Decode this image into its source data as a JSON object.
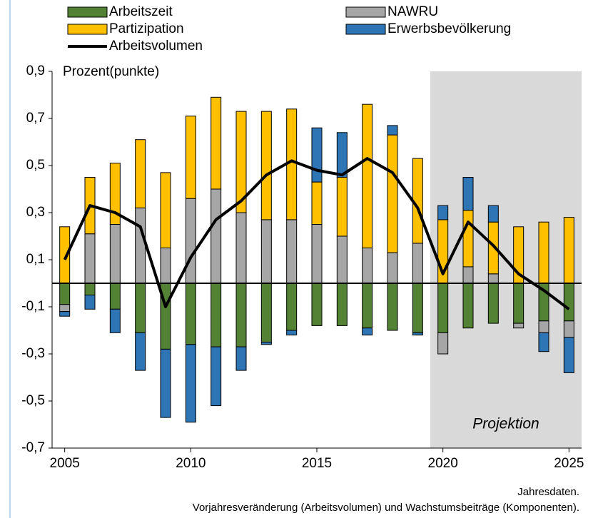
{
  "chart_data": {
    "type": "bar",
    "y_label": "Prozent(punkte)",
    "annotation": "Projektion",
    "projection_region": [
      2019.5,
      2025.5
    ],
    "notes": [
      "Jahresdaten.",
      "Vorjahresveränderung (Arbeitsvolumen) und Wachstumsbeiträge (Komponenten)."
    ],
    "x": [
      2005,
      2006,
      2007,
      2008,
      2009,
      2010,
      2011,
      2012,
      2013,
      2014,
      2015,
      2016,
      2017,
      2018,
      2019,
      2020,
      2021,
      2022,
      2023,
      2024,
      2025
    ],
    "xlim": [
      2004.5,
      2025.5
    ],
    "xticks": [
      2005,
      2010,
      2015,
      2020,
      2025
    ],
    "ylim": [
      -0.7,
      0.9
    ],
    "yticks": [
      {
        "value": -0.7,
        "label": "-0,7"
      },
      {
        "value": -0.5,
        "label": "-0,5"
      },
      {
        "value": -0.3,
        "label": "-0,3"
      },
      {
        "value": -0.1,
        "label": "-0,1"
      },
      {
        "value": 0.1,
        "label": "0,1"
      },
      {
        "value": 0.3,
        "label": "0,3"
      },
      {
        "value": 0.5,
        "label": "0,5"
      },
      {
        "value": 0.7,
        "label": "0,7"
      },
      {
        "value": 0.9,
        "label": "0,9"
      }
    ],
    "series": [
      {
        "name": "Arbeitszeit",
        "color": "#548235",
        "values": [
          -0.09,
          -0.05,
          -0.11,
          -0.21,
          -0.28,
          -0.26,
          -0.27,
          -0.27,
          -0.25,
          -0.2,
          -0.18,
          -0.18,
          -0.19,
          -0.2,
          -0.21,
          -0.21,
          -0.19,
          -0.17,
          -0.17,
          -0.16,
          -0.16
        ]
      },
      {
        "name": "NAWRU",
        "color": "#a6a6a6",
        "values": [
          -0.03,
          0.21,
          0.25,
          0.32,
          0.15,
          0.36,
          0.4,
          0.3,
          0.27,
          0.27,
          0.25,
          0.2,
          0.15,
          0.13,
          0.17,
          -0.09,
          0.07,
          0.04,
          -0.02,
          -0.05,
          -0.07
        ]
      },
      {
        "name": "Partizipation",
        "color": "#ffc000",
        "values": [
          0.24,
          0.24,
          0.26,
          0.29,
          0.32,
          0.35,
          0.39,
          0.43,
          0.46,
          0.47,
          0.18,
          0.25,
          0.61,
          0.5,
          0.36,
          0.27,
          0.24,
          0.22,
          0.24,
          0.26,
          0.28
        ]
      },
      {
        "name": "Erwerbsbevölkerung",
        "color": "#2e75b6",
        "values": [
          -0.02,
          -0.06,
          -0.1,
          -0.16,
          -0.29,
          -0.33,
          -0.25,
          -0.1,
          -0.01,
          -0.02,
          0.23,
          0.19,
          -0.03,
          0.04,
          -0.01,
          0.06,
          0.14,
          0.07,
          0,
          -0.08,
          -0.15
        ]
      }
    ],
    "line": {
      "name": "Arbeitsvolumen",
      "color": "#000000",
      "values": [
        0.1,
        0.33,
        0.3,
        0.24,
        -0.1,
        0.11,
        0.27,
        0.35,
        0.46,
        0.52,
        0.48,
        0.46,
        0.53,
        0.47,
        0.32,
        0.04,
        0.26,
        0.16,
        0.04,
        -0.03,
        -0.11
      ]
    }
  }
}
